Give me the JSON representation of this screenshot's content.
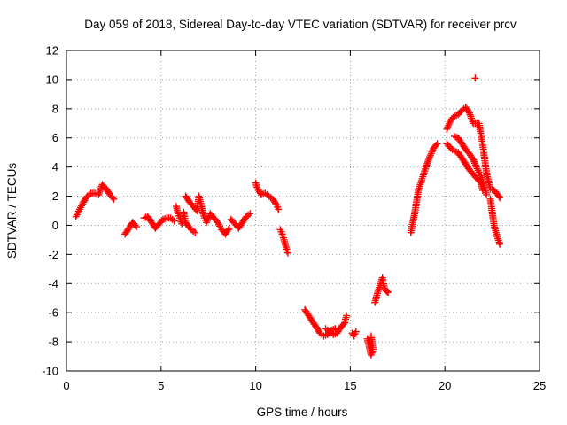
{
  "chart_data": {
    "type": "scatter",
    "title": "Day 059 of 2018, Sidereal Day-to-day VTEC variation (SDTVAR) for receiver prcv",
    "xlabel": "GPS time / hours",
    "ylabel": "SDTVAR / TECUs",
    "xlim": [
      0,
      25
    ],
    "ylim": [
      -10,
      12
    ],
    "x_ticks": [
      0,
      5,
      10,
      15,
      20,
      25
    ],
    "y_ticks": [
      -10,
      -8,
      -6,
      -4,
      -2,
      0,
      2,
      4,
      6,
      8,
      10,
      12
    ],
    "grid": true,
    "marker": "plus",
    "colors": {
      "series": "#ff0000",
      "grid": "#a0a0a0",
      "axis": "#000000"
    },
    "series": [
      {
        "name": "SDTVAR",
        "segments": [
          {
            "points": [
              [
                0.5,
                0.6
              ],
              [
                0.7,
                1.1
              ],
              [
                0.9,
                1.6
              ],
              [
                1.1,
                2.0
              ],
              [
                1.3,
                2.2
              ],
              [
                1.5,
                2.2
              ],
              [
                1.7,
                2.1
              ],
              [
                1.9,
                2.8
              ],
              [
                2.1,
                2.5
              ],
              [
                2.3,
                2.1
              ],
              [
                2.5,
                1.8
              ]
            ]
          },
          {
            "points": [
              [
                3.1,
                -0.6
              ],
              [
                3.3,
                -0.2
              ],
              [
                3.5,
                0.2
              ],
              [
                3.7,
                -0.1
              ]
            ]
          },
          {
            "points": [
              [
                4.1,
                0.5
              ],
              [
                4.3,
                0.6
              ],
              [
                4.5,
                0.2
              ],
              [
                4.7,
                -0.2
              ],
              [
                4.9,
                0.1
              ],
              [
                5.1,
                0.4
              ],
              [
                5.3,
                0.5
              ],
              [
                5.5,
                0.5
              ],
              [
                5.7,
                0.3
              ]
            ]
          },
          {
            "points": [
              [
                5.8,
                1.3
              ],
              [
                5.9,
                0.8
              ],
              [
                6.0,
                0.5
              ],
              [
                6.1,
                0.1
              ],
              [
                6.2,
                0.9
              ],
              [
                6.3,
                0.2
              ],
              [
                6.4,
                0.0
              ],
              [
                6.6,
                -0.3
              ],
              [
                6.8,
                -0.5
              ]
            ]
          },
          {
            "points": [
              [
                6.3,
                2.0
              ],
              [
                6.5,
                1.6
              ],
              [
                6.7,
                1.3
              ],
              [
                6.9,
                1.0
              ],
              [
                7.0,
                2.0
              ],
              [
                7.1,
                1.5
              ],
              [
                7.2,
                0.9
              ],
              [
                7.3,
                0.5
              ],
              [
                7.4,
                0.2
              ],
              [
                7.6,
                0.8
              ],
              [
                7.8,
                0.5
              ],
              [
                8.0,
                0.2
              ],
              [
                8.2,
                -0.3
              ],
              [
                8.4,
                -0.6
              ],
              [
                8.6,
                -0.2
              ]
            ]
          },
          {
            "points": [
              [
                8.7,
                0.4
              ],
              [
                8.9,
                0.1
              ],
              [
                9.1,
                -0.2
              ],
              [
                9.3,
                0.2
              ],
              [
                9.5,
                0.6
              ],
              [
                9.7,
                0.8
              ]
            ]
          },
          {
            "points": [
              [
                10.0,
                2.9
              ],
              [
                10.1,
                2.5
              ],
              [
                10.3,
                2.1
              ],
              [
                10.5,
                2.2
              ],
              [
                10.7,
                2.0
              ],
              [
                10.9,
                1.8
              ],
              [
                11.1,
                1.4
              ],
              [
                11.2,
                1.1
              ]
            ]
          },
          {
            "points": [
              [
                11.3,
                -0.3
              ],
              [
                11.4,
                -0.6
              ],
              [
                11.5,
                -1.0
              ],
              [
                11.6,
                -1.5
              ],
              [
                11.7,
                -1.9
              ]
            ]
          },
          {
            "points": [
              [
                12.6,
                -5.8
              ],
              [
                12.8,
                -6.2
              ],
              [
                13.0,
                -6.6
              ],
              [
                13.2,
                -7.0
              ],
              [
                13.4,
                -7.4
              ],
              [
                13.6,
                -7.6
              ],
              [
                13.8,
                -7.5
              ],
              [
                14.0,
                -7.2
              ],
              [
                14.2,
                -7.1
              ]
            ]
          },
          {
            "points": [
              [
                13.7,
                -7.1
              ],
              [
                13.9,
                -7.3
              ],
              [
                14.1,
                -7.5
              ],
              [
                14.3,
                -7.4
              ],
              [
                14.5,
                -7.0
              ],
              [
                14.7,
                -6.7
              ],
              [
                14.8,
                -6.2
              ]
            ]
          },
          {
            "points": [
              [
                15.1,
                -7.4
              ],
              [
                15.2,
                -7.6
              ],
              [
                15.3,
                -7.3
              ]
            ]
          },
          {
            "points": [
              [
                15.9,
                -7.8
              ],
              [
                16.0,
                -8.3
              ],
              [
                16.1,
                -8.9
              ],
              [
                16.2,
                -8.5
              ],
              [
                16.1,
                -7.6
              ]
            ]
          },
          {
            "points": [
              [
                16.3,
                -5.3
              ],
              [
                16.4,
                -4.8
              ],
              [
                16.5,
                -4.4
              ],
              [
                16.6,
                -4.0
              ],
              [
                16.7,
                -3.6
              ],
              [
                16.8,
                -4.3
              ],
              [
                16.9,
                -4.5
              ],
              [
                17.0,
                -4.6
              ]
            ]
          },
          {
            "points": [
              [
                18.2,
                -0.5
              ],
              [
                18.3,
                0.2
              ],
              [
                18.4,
                0.8
              ],
              [
                18.5,
                1.6
              ],
              [
                18.6,
                2.4
              ],
              [
                18.8,
                3.2
              ],
              [
                19.0,
                4.0
              ],
              [
                19.2,
                4.7
              ],
              [
                19.4,
                5.3
              ],
              [
                19.6,
                5.6
              ]
            ]
          },
          {
            "points": [
              [
                20.1,
                6.6
              ],
              [
                20.3,
                7.2
              ],
              [
                20.5,
                7.5
              ],
              [
                20.7,
                7.6
              ],
              [
                20.9,
                7.9
              ],
              [
                21.1,
                8.1
              ],
              [
                21.3,
                7.7
              ],
              [
                21.5,
                7.0
              ],
              [
                21.8,
                7.0
              ],
              [
                22.0,
                5.5
              ],
              [
                22.2,
                3.6
              ],
              [
                22.4,
                2.5
              ],
              [
                22.6,
                2.4
              ],
              [
                22.8,
                2.1
              ],
              [
                22.9,
                1.9
              ]
            ]
          },
          {
            "points": [
              [
                21.6,
                10.1
              ]
            ]
          },
          {
            "points": [
              [
                20.1,
                5.6
              ],
              [
                20.3,
                5.3
              ],
              [
                20.5,
                5.1
              ],
              [
                20.7,
                5.0
              ],
              [
                20.9,
                4.6
              ],
              [
                21.1,
                4.2
              ],
              [
                21.3,
                3.8
              ],
              [
                21.5,
                3.5
              ],
              [
                21.7,
                3.2
              ],
              [
                21.9,
                2.9
              ],
              [
                22.0,
                2.4
              ]
            ]
          },
          {
            "points": [
              [
                20.5,
                6.1
              ],
              [
                20.7,
                6.0
              ],
              [
                20.9,
                5.6
              ],
              [
                21.1,
                5.2
              ],
              [
                21.3,
                4.9
              ],
              [
                21.5,
                4.5
              ],
              [
                21.7,
                3.9
              ],
              [
                21.9,
                3.4
              ],
              [
                22.1,
                2.6
              ],
              [
                22.2,
                2.1
              ]
            ]
          },
          {
            "points": [
              [
                22.4,
                1.8
              ],
              [
                22.5,
                0.9
              ],
              [
                22.6,
                0.0
              ],
              [
                22.7,
                -0.5
              ],
              [
                22.8,
                -0.9
              ],
              [
                22.9,
                -1.3
              ]
            ]
          }
        ]
      }
    ]
  }
}
